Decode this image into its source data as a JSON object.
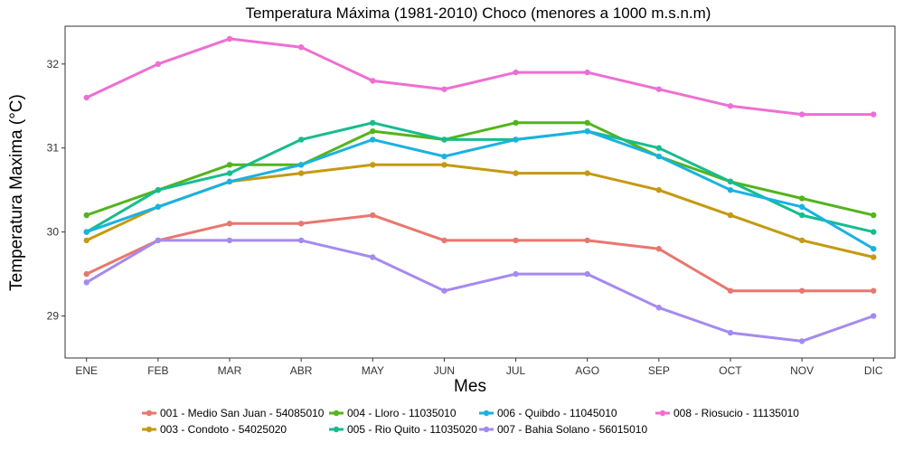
{
  "chart_data": {
    "type": "line",
    "title": "Temperatura Máxima (1981-2010) Choco (menores a 1000 m.s.n.m)",
    "xlabel": "Mes",
    "ylabel": "Temperatura Maxima (°C)",
    "categories": [
      "ENE",
      "FEB",
      "MAR",
      "ABR",
      "MAY",
      "JUN",
      "JUL",
      "AGO",
      "SEP",
      "OCT",
      "NOV",
      "DIC"
    ],
    "ylim": [
      28.5,
      32.45
    ],
    "yticks": [
      29,
      30,
      31,
      32
    ],
    "grid": false,
    "legend_position": "bottom",
    "series": [
      {
        "name": "001 - Medio San Juan - 54085010",
        "color": "#e8776e",
        "values": [
          29.5,
          29.9,
          30.1,
          30.1,
          30.2,
          29.9,
          29.9,
          29.9,
          29.8,
          29.3,
          29.3,
          29.3
        ]
      },
      {
        "name": "003 - Condoto - 54025020",
        "color": "#c49a12",
        "values": [
          29.9,
          30.3,
          30.6,
          30.7,
          30.8,
          30.8,
          30.7,
          30.7,
          30.5,
          30.2,
          29.9,
          29.7
        ]
      },
      {
        "name": "004 - Lloro - 11035010",
        "color": "#53b41c",
        "values": [
          30.2,
          30.5,
          30.8,
          30.8,
          31.2,
          31.1,
          31.3,
          31.3,
          30.9,
          30.6,
          30.4,
          30.2
        ]
      },
      {
        "name": "005 - Rio Quito - 11035020",
        "color": "#17bc8e",
        "values": [
          30.0,
          30.5,
          30.7,
          31.1,
          31.3,
          31.1,
          31.1,
          31.2,
          31.0,
          30.6,
          30.2,
          30.0
        ]
      },
      {
        "name": "006 - Quibdo - 11045010",
        "color": "#1ab2e0",
        "values": [
          30.0,
          30.3,
          30.6,
          30.8,
          31.1,
          30.9,
          31.1,
          31.2,
          30.9,
          30.5,
          30.3,
          29.8
        ]
      },
      {
        "name": "007 - Bahia Solano - 56015010",
        "color": "#a48af0",
        "values": [
          29.4,
          29.9,
          29.9,
          29.9,
          29.7,
          29.3,
          29.5,
          29.5,
          29.1,
          28.8,
          28.7,
          29.0
        ]
      },
      {
        "name": "008 - Riosucio - 11135010",
        "color": "#ee6fd3",
        "values": [
          31.6,
          32.0,
          32.3,
          32.2,
          31.8,
          31.7,
          31.9,
          31.9,
          31.7,
          31.5,
          31.4,
          31.4
        ]
      }
    ],
    "legend_order": [
      0,
      1,
      2,
      3,
      4,
      5,
      6
    ]
  }
}
